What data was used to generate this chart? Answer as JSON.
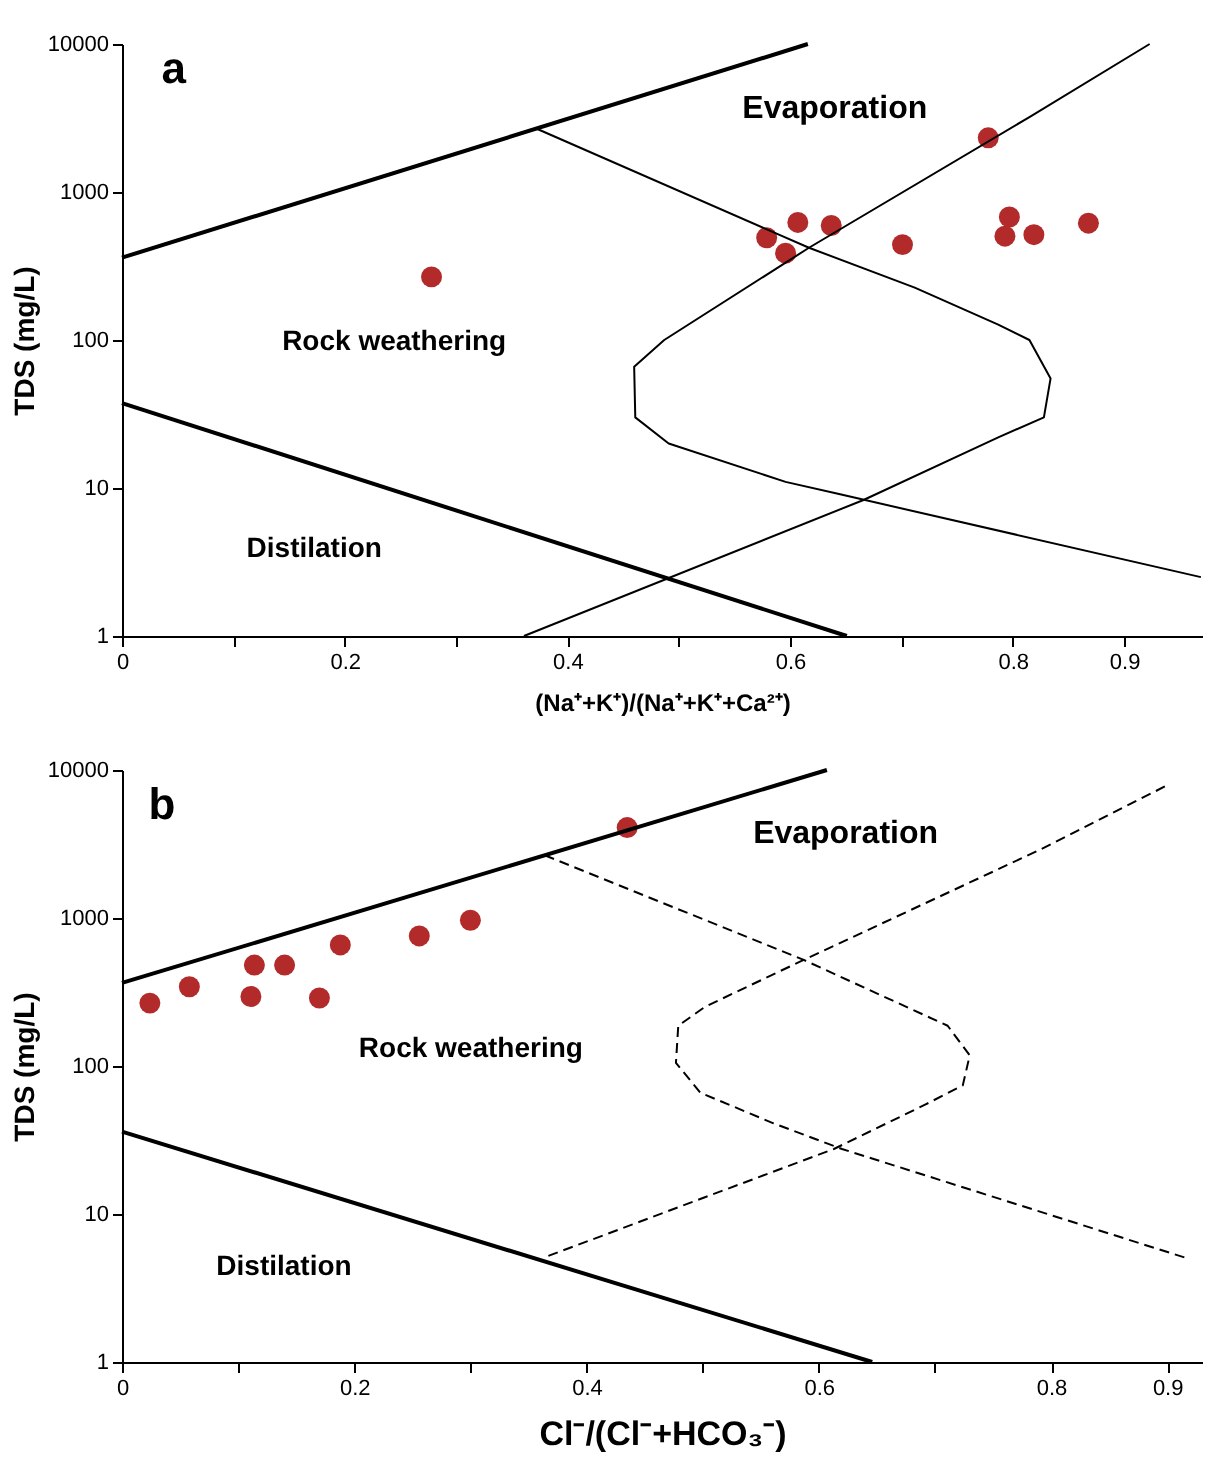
{
  "chart_data": [
    {
      "type": "scatter",
      "title": "a",
      "xlabel": "(Na⁺+K⁺)/(Na⁺+K⁺+Ca²⁺)",
      "ylabel": "TDS (mg/L)",
      "annotations": [
        "Evaporation",
        "Rock weathering",
        "Distilation"
      ],
      "log": "y",
      "xlim": [
        0,
        0.97
      ],
      "ylim": [
        1,
        10000
      ],
      "yticks": [
        1,
        10,
        100,
        1000,
        10000
      ],
      "xticks": [
        0,
        {
          "value": 0.1,
          "label": null
        },
        0.2,
        {
          "value": 0.3,
          "label": null
        },
        0.4,
        {
          "value": 0.5,
          "label": null
        },
        0.6,
        {
          "value": 0.7,
          "label": null
        },
        0.8,
        0.9
      ],
      "series": [
        {
          "marker": "circle",
          "color": "#b22a2a",
          "x": [
            0.278,
            0.579,
            0.596,
            0.607,
            0.637,
            0.701,
            0.778,
            0.793,
            0.797,
            0.819,
            0.868
          ],
          "values": [
            267,
            491,
            386,
            623,
            594,
            441,
            2323,
            503,
            678,
            515,
            616
          ]
        },
        {
          "type": "line",
          "color": "#000000",
          "line_style": "solid",
          "x": [
            0,
            0.616
          ],
          "values": [
            360,
            10000
          ]
        },
        {
          "type": "line",
          "color": "#000000",
          "line_style": "solid",
          "x": [
            0,
            0.651
          ],
          "values": [
            37.5,
            1
          ]
        },
        {
          "type": "line",
          "color": "#000000",
          "line_style": "solid",
          "x": [
            0.372,
            0.617,
            0.712,
            0.787,
            0.815,
            0.834,
            0.828,
            0.787,
            0.666,
            0.361
          ],
          "values": [
            2685,
            420,
            226,
            127,
            100,
            55,
            30,
            22,
            8.3,
            1
          ]
        },
        {
          "type": "line",
          "color": "#000000",
          "line_style": "solid",
          "x": [
            0.923,
            0.815,
            0.617,
            0.487,
            0.46,
            0.461,
            0.491,
            0.596,
            0.644,
            0.969
          ],
          "values": [
            10000,
            3210,
            420,
            100,
            66,
            30,
            20,
            11,
            9.1,
            2.5
          ]
        }
      ]
    },
    {
      "type": "scatter",
      "title": "b",
      "xlabel": "Cl⁻/(Cl⁻+HCO₃⁻)",
      "ylabel": "TDS (mg/L)",
      "annotations": [
        "Evaporation",
        "Rock weathering",
        "Distilation"
      ],
      "log": "y",
      "xlim": [
        0,
        0.93
      ],
      "ylim": [
        1,
        10000
      ],
      "yticks": [
        1,
        10,
        100,
        1000,
        10000
      ],
      "xticks": [
        0,
        {
          "value": 0.1,
          "label": null
        },
        0.2,
        {
          "value": 0.3,
          "label": null
        },
        0.4,
        {
          "value": 0.5,
          "label": null
        },
        0.6,
        {
          "value": 0.7,
          "label": null
        },
        0.8,
        0.9
      ],
      "series": [
        {
          "marker": "circle",
          "color": "#b22a2a",
          "x": [
            0.024,
            0.058,
            0.111,
            0.114,
            0.14,
            0.17,
            0.188,
            0.256,
            0.3,
            0.435
          ],
          "values": [
            266,
            343,
            295,
            481,
            481,
            288,
            658,
            757,
            966,
            4083
          ]
        },
        {
          "type": "line",
          "color": "#000000",
          "line_style": "solid",
          "x": [
            0,
            0.607
          ],
          "values": [
            364,
            10000
          ]
        },
        {
          "type": "line",
          "color": "#000000",
          "line_style": "solid",
          "x": [
            0,
            0.646
          ],
          "values": [
            36,
            1
          ]
        },
        {
          "type": "line",
          "color": "#000000",
          "line_style": "dashed",
          "x": [
            0.364,
            0.587,
            0.711,
            0.73,
            0.724,
            0.692,
            0.613,
            0.364
          ],
          "values": [
            2655,
            521,
            187,
            118,
            74,
            55,
            27.5,
            5.1
          ]
        },
        {
          "type": "line",
          "color": "#000000",
          "line_style": "dashed",
          "x": [
            0.898,
            0.79,
            0.587,
            0.502,
            0.479,
            0.477,
            0.498,
            0.561,
            0.62,
            0.918
          ],
          "values": [
            7740,
            2880,
            521,
            251,
            187,
            105,
            66,
            41,
            27.5,
            5.0
          ]
        }
      ]
    }
  ]
}
